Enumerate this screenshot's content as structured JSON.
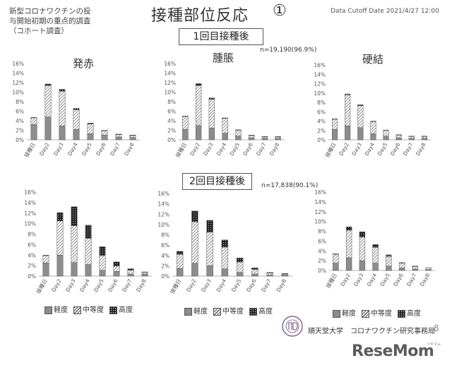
{
  "header": {
    "subtitle": "新型コロナワクチンの投\n与開始初期の重点的調査\n（コホート調査）",
    "title": "接種部位反応",
    "number": "①",
    "cutoff": "Data Cutoff Date 2021/4/27 12:00"
  },
  "dose1": {
    "label": "1回目接種後",
    "n": "n=19,190(96.9%)"
  },
  "dose2": {
    "label": "2回目接種後",
    "n": "n=17,838(90.1%)"
  },
  "legend": {
    "mild": "軽度",
    "moderate": "中等度",
    "severe": "高度"
  },
  "footer": {
    "org": "順天堂大学　コロナワクチン研究事務局",
    "page": "8",
    "brand": "ReseMom",
    "brand_kana": "リセマム"
  },
  "colors": {
    "mild": "#8c8c8c",
    "moderate_hatch": "#555555",
    "severe": "#222222"
  },
  "chart_data": [
    {
      "type": "bar",
      "stacked": true,
      "title": "発赤",
      "dose": "1回目接種後",
      "categories": [
        "接種日",
        "Day2",
        "Day3",
        "Day4",
        "Day5",
        "Day6",
        "Day7",
        "Day8"
      ],
      "ylim": [
        0,
        16
      ],
      "yticks": [
        0,
        2,
        4,
        6,
        8,
        10,
        12,
        14,
        16
      ],
      "tick_suffix": "%",
      "series": [
        {
          "name": "軽度",
          "values": [
            3.2,
            4.8,
            2.9,
            2.2,
            1.3,
            1.0,
            0.6,
            0.5
          ]
        },
        {
          "name": "中等度",
          "values": [
            1.4,
            6.6,
            7.3,
            4.1,
            2.0,
            0.9,
            0.5,
            0.4
          ]
        },
        {
          "name": "高度",
          "values": [
            0.1,
            0.3,
            0.4,
            0.3,
            0.2,
            0.1,
            0.1,
            0.1
          ]
        }
      ]
    },
    {
      "type": "bar",
      "stacked": true,
      "title": "腫脹",
      "dose": "1回目接種後",
      "categories": [
        "接種日",
        "Day2",
        "Day3",
        "Day4",
        "Day5",
        "Day6",
        "Day7",
        "Day8"
      ],
      "ylim": [
        0,
        16
      ],
      "yticks": [
        0,
        2,
        4,
        6,
        8,
        10,
        12,
        14,
        16
      ],
      "tick_suffix": "%",
      "series": [
        {
          "name": "軽度",
          "values": [
            2.2,
            3.0,
            2.5,
            1.4,
            0.8,
            0.4,
            0.3,
            0.3
          ]
        },
        {
          "name": "中等度",
          "values": [
            2.7,
            8.4,
            6.0,
            3.1,
            1.2,
            0.5,
            0.3,
            0.3
          ]
        },
        {
          "name": "高度",
          "values": [
            0.1,
            0.4,
            0.3,
            0.1,
            0.1,
            0.1,
            0.1,
            0.1
          ]
        }
      ]
    },
    {
      "type": "bar",
      "stacked": true,
      "title": "硬結",
      "dose": "1回目接種後",
      "categories": [
        "接種日",
        "Day2",
        "Day3",
        "Day4",
        "Day5",
        "Day6",
        "Day7",
        "Day8"
      ],
      "ylim": [
        0,
        16
      ],
      "yticks": [
        0,
        2,
        4,
        6,
        8,
        10,
        12,
        14,
        16
      ],
      "tick_suffix": "%",
      "series": [
        {
          "name": "軽度",
          "values": [
            2.2,
            3.0,
            2.6,
            1.3,
            0.8,
            0.4,
            0.3,
            0.3
          ]
        },
        {
          "name": "中等度",
          "values": [
            2.2,
            6.6,
            4.7,
            2.6,
            1.2,
            0.6,
            0.4,
            0.4
          ]
        },
        {
          "name": "高度",
          "values": [
            0.1,
            0.2,
            0.2,
            0.1,
            0.1,
            0.1,
            0.1,
            0.1
          ]
        }
      ]
    },
    {
      "type": "bar",
      "stacked": true,
      "title": "",
      "dose": "2回目接種後",
      "categories": [
        "接種日",
        "Day2",
        "Day3",
        "Day4",
        "Day5",
        "Day6",
        "Day7",
        "Day8"
      ],
      "ylim": [
        0,
        16
      ],
      "yticks": [
        0,
        2,
        4,
        6,
        8,
        10,
        12,
        14,
        16
      ],
      "tick_suffix": "%",
      "series": [
        {
          "name": "軽度",
          "values": [
            2.5,
            4.0,
            2.6,
            2.2,
            1.1,
            0.9,
            0.4,
            0.4
          ]
        },
        {
          "name": "中等度",
          "values": [
            1.4,
            6.5,
            7.0,
            5.0,
            2.8,
            1.0,
            0.7,
            0.3
          ]
        },
        {
          "name": "高度",
          "values": [
            0.1,
            1.6,
            3.6,
            2.5,
            1.7,
            0.8,
            0.3,
            0.1
          ]
        }
      ]
    },
    {
      "type": "bar",
      "stacked": true,
      "title": "",
      "dose": "2回目接種後",
      "categories": [
        "接種日",
        "Day2",
        "Day3",
        "Day4",
        "Day5",
        "Day6",
        "Day7",
        "Day8"
      ],
      "ylim": [
        0,
        16
      ],
      "yticks": [
        0,
        2,
        4,
        6,
        8,
        10,
        12,
        14,
        16
      ],
      "tick_suffix": "%",
      "series": [
        {
          "name": "軽度",
          "values": [
            1.5,
            2.5,
            2.0,
            1.4,
            0.7,
            0.4,
            0.2,
            0.2
          ]
        },
        {
          "name": "中等度",
          "values": [
            2.7,
            8.0,
            6.5,
            4.2,
            2.0,
            0.9,
            0.4,
            0.2
          ]
        },
        {
          "name": "高度",
          "values": [
            0.6,
            2.1,
            2.3,
            1.4,
            0.8,
            0.3,
            0.1,
            0.1
          ]
        }
      ]
    },
    {
      "type": "bar",
      "stacked": true,
      "title": "",
      "dose": "2回目接種後",
      "categories": [
        "接種日",
        "Day2",
        "Day3",
        "Day4",
        "Day5",
        "Day6",
        "Day7",
        "Day8"
      ],
      "ylim": [
        0,
        16
      ],
      "yticks": [
        0,
        2,
        4,
        6,
        8,
        10,
        12,
        14,
        16
      ],
      "tick_suffix": "%",
      "series": [
        {
          "name": "軽度",
          "values": [
            1.5,
            2.6,
            2.0,
            1.5,
            0.9,
            0.5,
            0.3,
            0.2
          ]
        },
        {
          "name": "中等度",
          "values": [
            1.8,
            5.6,
            4.8,
            3.2,
            2.0,
            1.0,
            0.5,
            0.4
          ]
        },
        {
          "name": "高度",
          "values": [
            0.1,
            0.7,
            1.1,
            0.6,
            0.3,
            0.1,
            0.1,
            0.0
          ]
        }
      ]
    }
  ]
}
